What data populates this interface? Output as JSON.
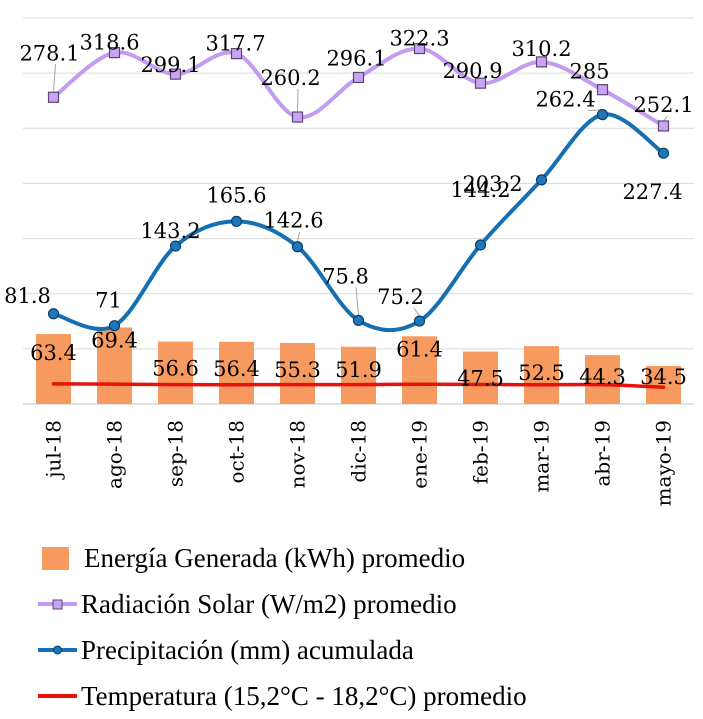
{
  "chart_data": {
    "type": "bar",
    "title": "",
    "xlabel": "",
    "ylabel": "",
    "ylim": [
      0,
      350
    ],
    "grid": true,
    "gridline_step": 50,
    "legend_position": "bottom",
    "categories": [
      "jul-18",
      "ago-18",
      "sep-18",
      "oct-18",
      "nov-18",
      "dic-18",
      "ene-19",
      "feb-19",
      "mar-19",
      "abr-19",
      "mayo-19"
    ],
    "series": [
      {
        "name": "Energía Generada (kWh) promedio",
        "kind": "bar",
        "color": "#f79a60",
        "values": [
          63.4,
          69.4,
          56.6,
          56.4,
          55.3,
          51.9,
          61.4,
          47.5,
          52.5,
          44.3,
          34.5
        ],
        "labels": [
          "63.4",
          "69.4",
          "56.6",
          "56.4",
          "55.3",
          "51.9",
          "61.4",
          "47.5",
          "52.5",
          "44.3",
          "34.5"
        ]
      },
      {
        "name": "Radiación Solar (W/m2) promedio",
        "kind": "line",
        "marker": "square",
        "color": "#c39bf0",
        "marker_fill": "#c9a4f5",
        "marker_stroke": "#5a4670",
        "values": [
          278.1,
          318.6,
          299.1,
          317.7,
          260.2,
          296.1,
          322.3,
          290.9,
          310.2,
          285,
          252.1
        ],
        "labels": [
          "278.1",
          "318.6",
          "299.1",
          "317.7",
          "260.2",
          "296.1",
          "322.3",
          "290.9",
          "310.2",
          "285",
          "252.1"
        ]
      },
      {
        "name": "Precipitación (mm) acumulada",
        "kind": "line",
        "marker": "circle",
        "color": "#1570b3",
        "marker_fill": "#1f77bb",
        "marker_stroke": "#0d3f66",
        "values": [
          81.8,
          71,
          143.2,
          165.6,
          142.6,
          75.8,
          75.2,
          144.2,
          203.2,
          262.4,
          227.4
        ],
        "labels": [
          "81.8",
          "71",
          "143.2",
          "165.6",
          "142.6",
          "75.8",
          "75.2",
          "144.2",
          "203.2",
          "262.4",
          "227.4"
        ]
      },
      {
        "name": "Temperatura (15,2°C - 18,2°C) promedio",
        "kind": "line",
        "marker": "none",
        "color": "#e8120c",
        "values": [
          18.2,
          18.0,
          17.6,
          17.5,
          17.6,
          17.6,
          17.9,
          17.7,
          17.5,
          17.6,
          15.2
        ]
      }
    ]
  }
}
